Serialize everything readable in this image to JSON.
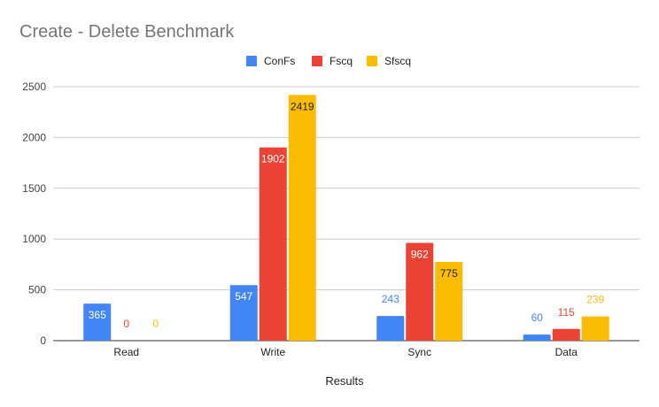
{
  "chart_data": {
    "type": "bar",
    "title": "Create - Delete Benchmark",
    "xlabel": "Results",
    "ylabel": "",
    "categories": [
      "Read",
      "Write",
      "Sync",
      "Data"
    ],
    "series": [
      {
        "name": "ConFs",
        "color": "#4285f4",
        "values": [
          365,
          547,
          243,
          60
        ]
      },
      {
        "name": "Fscq",
        "color": "#ea4335",
        "values": [
          0,
          1902,
          962,
          115
        ]
      },
      {
        "name": "Sfscq",
        "color": "#fbbc04",
        "values": [
          0,
          2419,
          775,
          239
        ]
      }
    ],
    "ylim": [
      0,
      2500
    ],
    "yticks": [
      0,
      500,
      1000,
      1500,
      2000,
      2500
    ],
    "grid": true,
    "legend": "top-center"
  }
}
